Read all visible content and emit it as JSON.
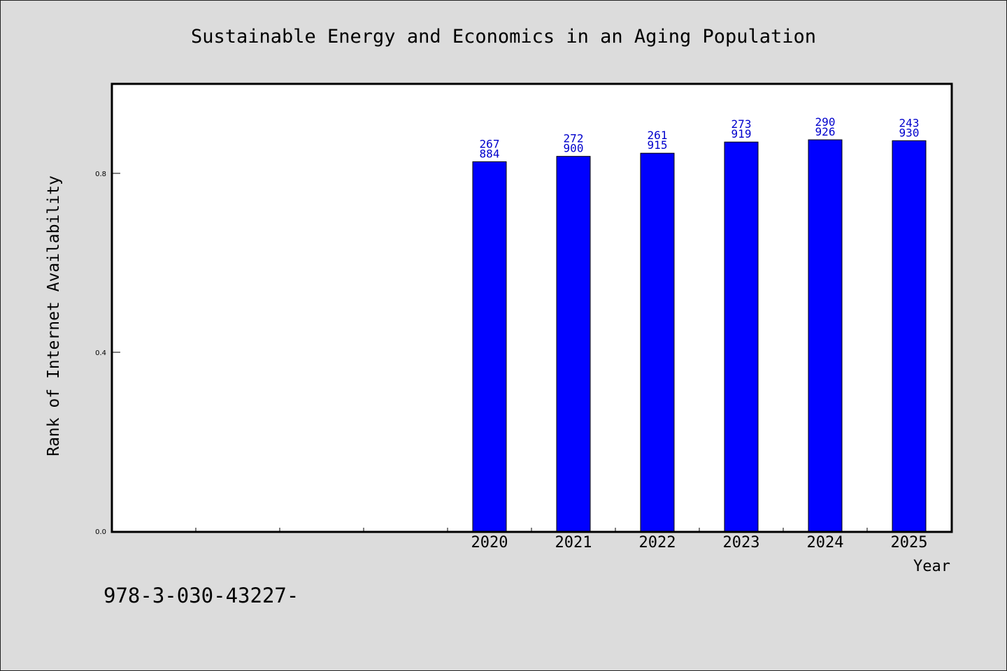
{
  "chart_data": {
    "type": "bar",
    "title": "Sustainable Energy and Economics in an Aging Population",
    "xlabel": "Year",
    "ylabel": "Rank of Internet Availability",
    "ylim": [
      0,
      1.0
    ],
    "yticks": [
      "0.0",
      "0.4",
      "0.8"
    ],
    "x_slots": 10,
    "categories": [
      "2020",
      "2021",
      "2022",
      "2023",
      "2024",
      "2025"
    ],
    "values": [
      0.826,
      0.838,
      0.845,
      0.87,
      0.875,
      0.873
    ],
    "bar_labels": [
      [
        "267",
        "884"
      ],
      [
        "272",
        "900"
      ],
      [
        "261",
        "915"
      ],
      [
        "273",
        "919"
      ],
      [
        "290",
        "926"
      ],
      [
        "243",
        "930"
      ]
    ],
    "grid": false,
    "bar_color": "#0000ff",
    "label_color": "#0000cc",
    "footer": "978-3-030-43227-"
  }
}
